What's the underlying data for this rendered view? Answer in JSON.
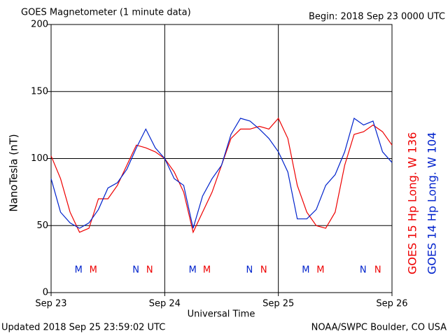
{
  "chart_data": {
    "type": "line",
    "title": "GOES Magnetometer (1 minute data)",
    "subtitle": "Begin:  2018 Sep 23 0000 UTC",
    "ylabel": "NanoTesla (nT)",
    "xlabel": "Universal Time",
    "footer_left": "Updated 2018 Sep 25 23:59:02 UTC",
    "footer_right": "NOAA/SWPC Boulder, CO USA",
    "x": [
      0,
      2,
      4,
      6,
      8,
      10,
      12,
      14,
      16,
      18,
      20,
      22,
      24,
      26,
      28,
      30,
      32,
      34,
      36,
      38,
      40,
      42,
      44,
      46,
      48,
      50,
      52,
      54,
      56,
      58,
      60,
      62,
      64,
      66,
      68,
      70,
      72
    ],
    "xlim": [
      0,
      72
    ],
    "xticks": [
      {
        "value": 0,
        "label": "Sep 23"
      },
      {
        "value": 24,
        "label": "Sep 24"
      },
      {
        "value": 48,
        "label": "Sep 25"
      },
      {
        "value": 72,
        "label": "Sep 26"
      }
    ],
    "ylim": [
      0,
      200
    ],
    "yticks": [
      0,
      50,
      100,
      150,
      200
    ],
    "grid": true,
    "series": [
      {
        "name": "GOES 15 Hp  Long. W 136",
        "color": "#ee0000",
        "values": [
          102,
          85,
          60,
          45,
          48,
          70,
          70,
          80,
          95,
          110,
          108,
          105,
          100,
          90,
          75,
          45,
          60,
          75,
          95,
          115,
          122,
          122,
          124,
          122,
          130,
          115,
          80,
          60,
          50,
          48,
          60,
          95,
          118,
          120,
          125,
          120,
          110
        ]
      },
      {
        "name": "GOES 14 Hp  Long. W 104",
        "color": "#0022cc",
        "values": [
          85,
          60,
          52,
          48,
          52,
          62,
          78,
          82,
          92,
          108,
          122,
          108,
          100,
          85,
          80,
          48,
          72,
          85,
          95,
          118,
          130,
          128,
          122,
          115,
          105,
          90,
          55,
          55,
          62,
          80,
          88,
          105,
          130,
          125,
          128,
          105,
          97
        ]
      }
    ],
    "annotations": [
      {
        "text": "M",
        "x": 5.8,
        "color": "#0022cc"
      },
      {
        "text": "M",
        "x": 8.9,
        "color": "#ee0000"
      },
      {
        "text": "N",
        "x": 17.9,
        "color": "#0022cc"
      },
      {
        "text": "N",
        "x": 20.8,
        "color": "#ee0000"
      },
      {
        "text": "M",
        "x": 29.9,
        "color": "#0022cc"
      },
      {
        "text": "M",
        "x": 32.9,
        "color": "#ee0000"
      },
      {
        "text": "N",
        "x": 41.9,
        "color": "#0022cc"
      },
      {
        "text": "N",
        "x": 44.9,
        "color": "#ee0000"
      },
      {
        "text": "M",
        "x": 53.8,
        "color": "#0022cc"
      },
      {
        "text": "M",
        "x": 56.9,
        "color": "#ee0000"
      },
      {
        "text": "N",
        "x": 65.9,
        "color": "#0022cc"
      },
      {
        "text": "N",
        "x": 69.0,
        "color": "#ee0000"
      }
    ]
  }
}
